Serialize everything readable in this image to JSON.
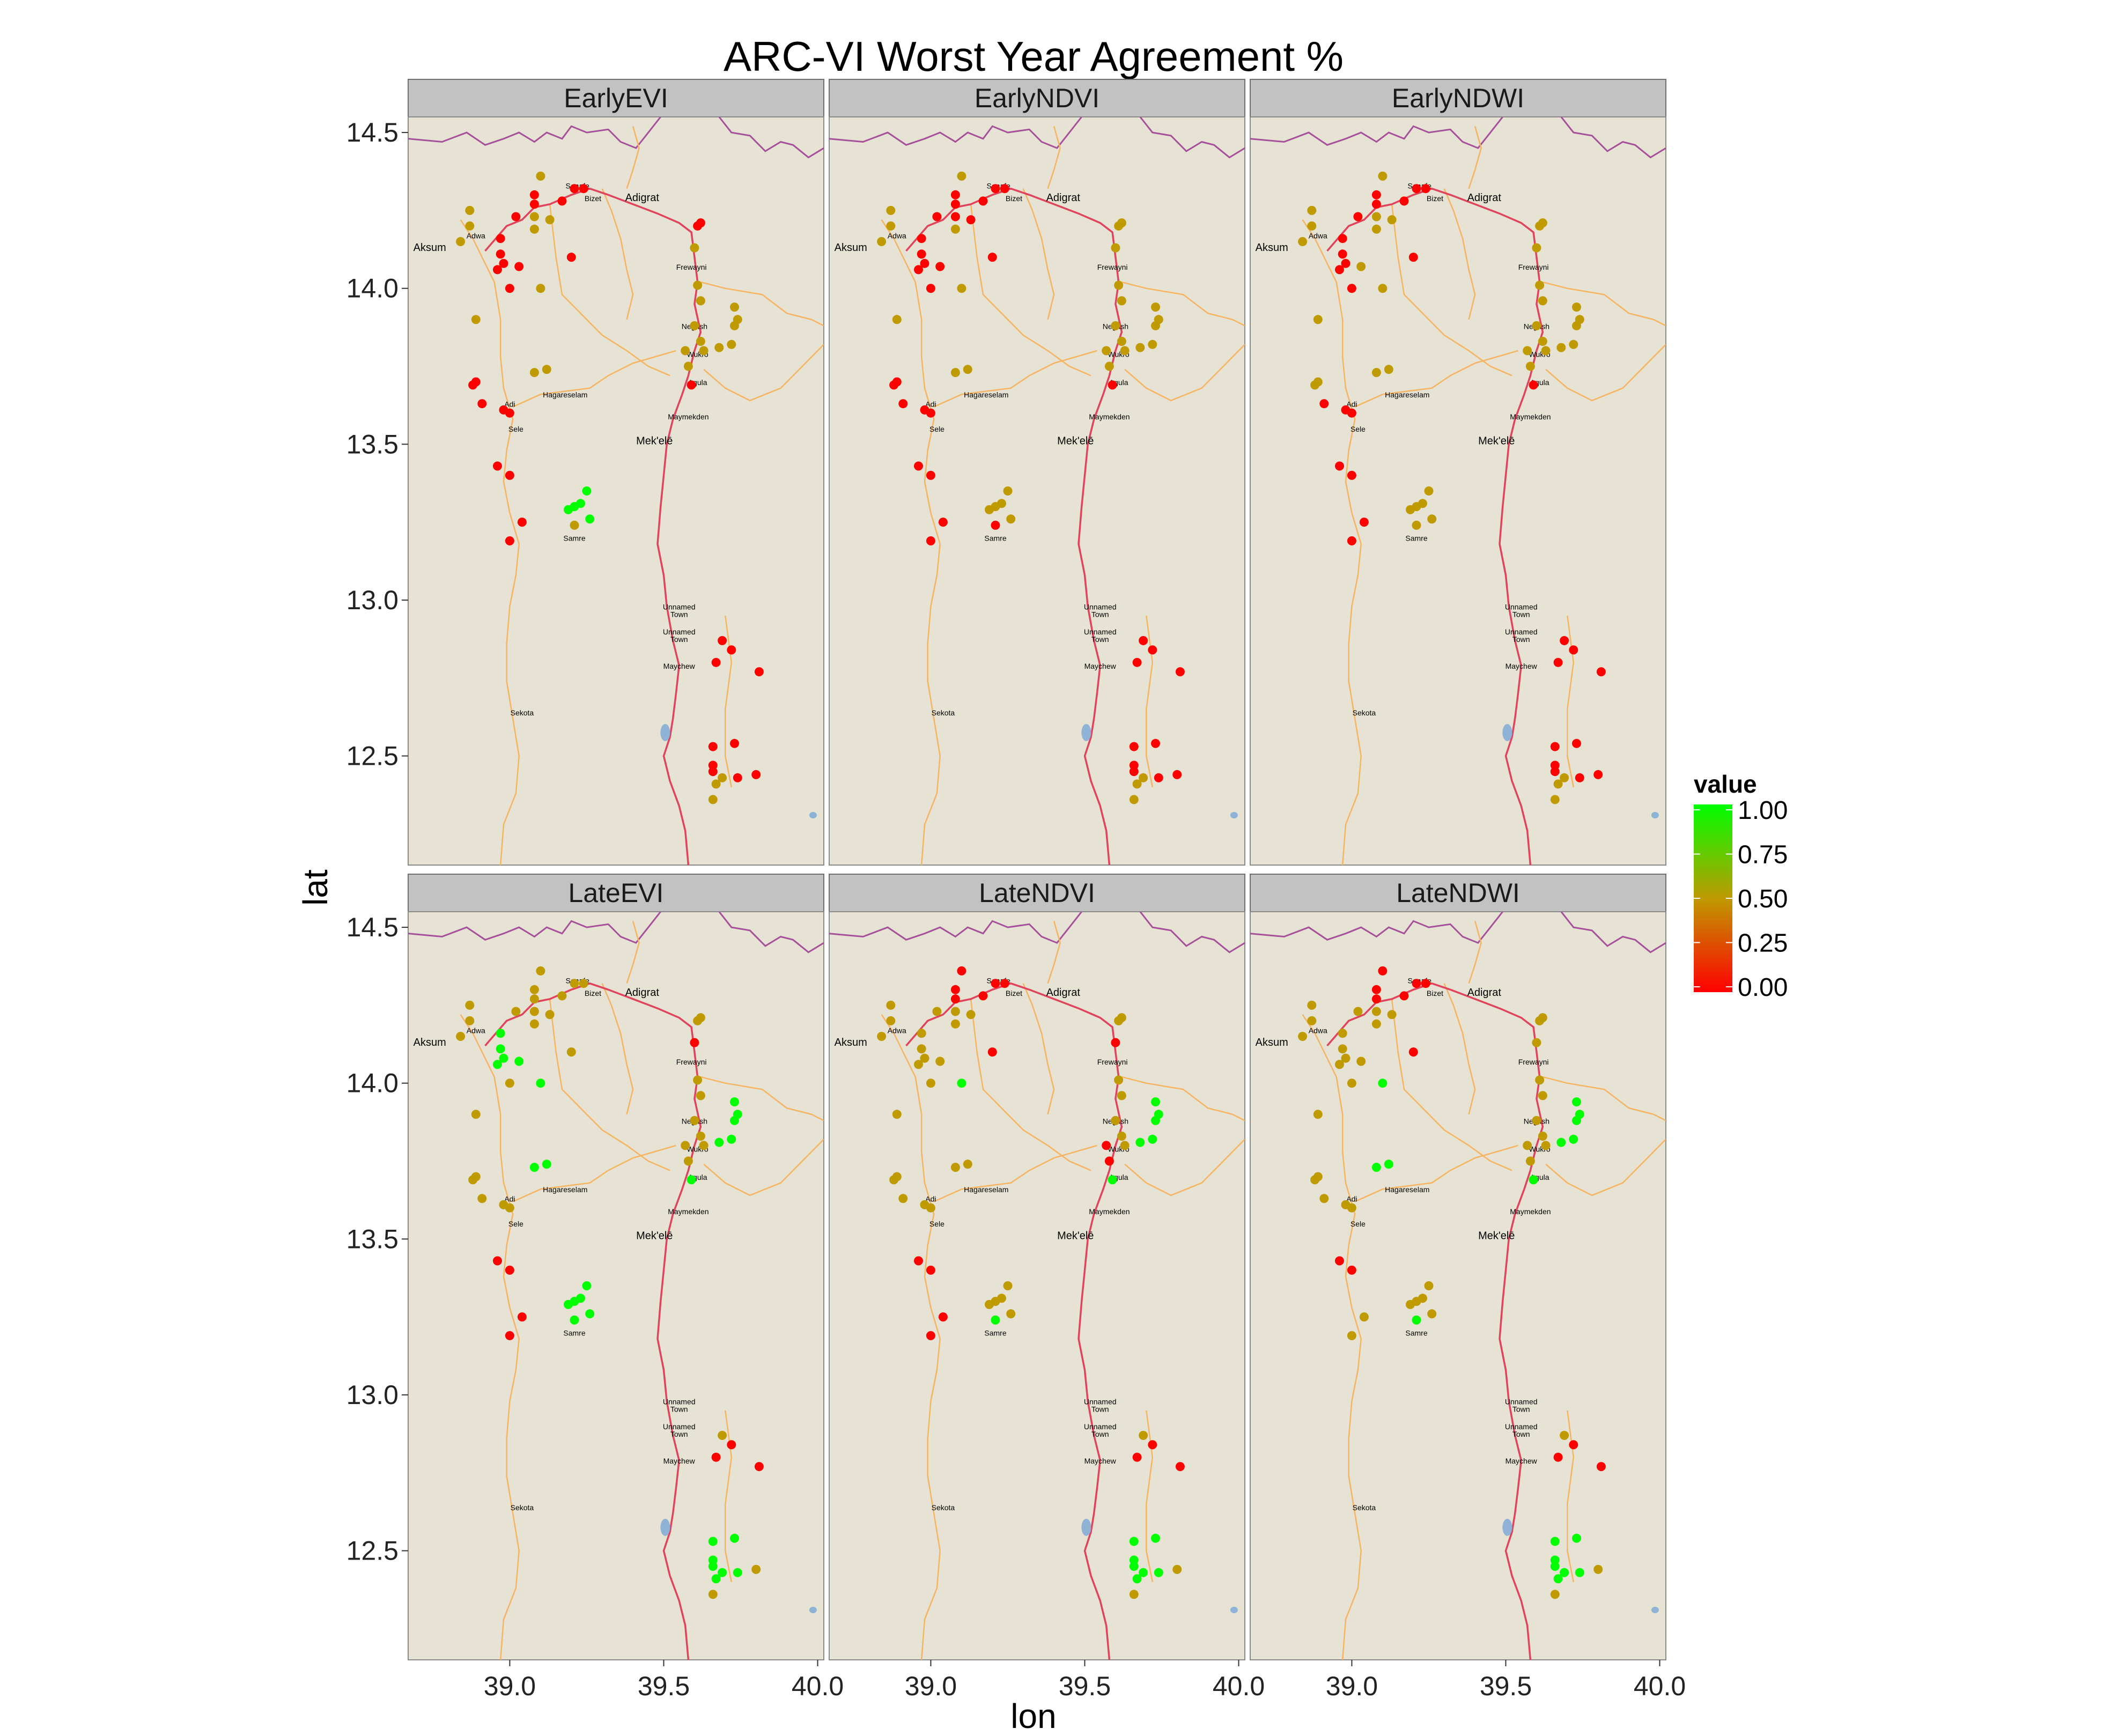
{
  "title": "ARC-VI Worst Year Agreement %",
  "colors": {
    "panel_bg": "#e6e2d4",
    "strip_bg": "#c2c2c2",
    "border_line": "#a64f9a",
    "road_line": "#f6b360",
    "main_road": "#e0435b",
    "water": "#8fb3d6",
    "low": "#ff0000",
    "mid": "#bf9a00",
    "high": "#00ff00"
  },
  "chart_data": {
    "type": "scatter",
    "title": "ARC-VI Worst Year Agreement %",
    "xlabel": "lon",
    "ylabel": "lat",
    "xlim": [
      38.67,
      40.02
    ],
    "ylim": [
      12.15,
      14.55
    ],
    "xticks": [
      "39.0",
      "39.5",
      "40.0"
    ],
    "xtick_values": [
      39.0,
      39.5,
      40.0
    ],
    "yticks": [
      "12.5",
      "13.0",
      "13.5",
      "14.0",
      "14.5"
    ],
    "ytick_values": [
      12.5,
      13.0,
      13.5,
      14.0,
      14.5
    ],
    "legend": {
      "title": "value",
      "position": "right",
      "labels": [
        "1.00",
        "0.75",
        "0.50",
        "0.25",
        "0.00"
      ],
      "values": [
        1.0,
        0.75,
        0.5,
        0.25,
        0.0
      ]
    },
    "towns": [
      {
        "name": "Aksum",
        "lon": 38.74,
        "lat": 14.12
      },
      {
        "name": "Adwa",
        "lon": 38.89,
        "lat": 14.16
      },
      {
        "name": "Senafe",
        "lon": 39.22,
        "lat": 14.32
      },
      {
        "name": "Bizet",
        "lon": 39.27,
        "lat": 14.28
      },
      {
        "name": "Adigrat",
        "lon": 39.43,
        "lat": 14.28
      },
      {
        "name": "Frewayni",
        "lon": 39.59,
        "lat": 14.06
      },
      {
        "name": "Negash",
        "lon": 39.6,
        "lat": 13.87
      },
      {
        "name": "Wukro",
        "lon": 39.61,
        "lat": 13.78
      },
      {
        "name": "Agula",
        "lon": 39.61,
        "lat": 13.69
      },
      {
        "name": "Adi",
        "lon": 39.0,
        "lat": 13.62
      },
      {
        "name": "Hagareselam",
        "lon": 39.18,
        "lat": 13.65
      },
      {
        "name": "Maymekden",
        "lon": 39.58,
        "lat": 13.58
      },
      {
        "name": "Sele",
        "lon": 39.02,
        "lat": 13.54
      },
      {
        "name": "Mek'elē",
        "lon": 39.47,
        "lat": 13.5
      },
      {
        "name": "Samre",
        "lon": 39.21,
        "lat": 13.19
      },
      {
        "name": "Unnamed\nTown",
        "lon": 39.55,
        "lat": 12.97
      },
      {
        "name": "Unnamed\nTown",
        "lon": 39.55,
        "lat": 12.89
      },
      {
        "name": "Maychew",
        "lon": 39.55,
        "lat": 12.78
      },
      {
        "name": "Sekota",
        "lon": 39.04,
        "lat": 12.63
      }
    ],
    "sites": [
      {
        "lon": 38.87,
        "lat": 14.25
      },
      {
        "lon": 38.87,
        "lat": 14.2
      },
      {
        "lon": 38.84,
        "lat": 14.15
      },
      {
        "lon": 38.97,
        "lat": 14.16
      },
      {
        "lon": 38.97,
        "lat": 14.11
      },
      {
        "lon": 38.98,
        "lat": 14.08
      },
      {
        "lon": 38.96,
        "lat": 14.06
      },
      {
        "lon": 39.0,
        "lat": 14.0
      },
      {
        "lon": 39.03,
        "lat": 14.07
      },
      {
        "lon": 39.1,
        "lat": 14.0
      },
      {
        "lon": 39.08,
        "lat": 14.3
      },
      {
        "lon": 39.1,
        "lat": 14.36
      },
      {
        "lon": 39.08,
        "lat": 14.27
      },
      {
        "lon": 39.13,
        "lat": 14.22
      },
      {
        "lon": 39.08,
        "lat": 14.19
      },
      {
        "lon": 39.08,
        "lat": 14.23
      },
      {
        "lon": 39.02,
        "lat": 14.23
      },
      {
        "lon": 39.17,
        "lat": 14.28
      },
      {
        "lon": 39.21,
        "lat": 14.32
      },
      {
        "lon": 39.24,
        "lat": 14.32
      },
      {
        "lon": 39.2,
        "lat": 14.1
      },
      {
        "lon": 38.89,
        "lat": 13.9
      },
      {
        "lon": 38.88,
        "lat": 13.69
      },
      {
        "lon": 38.89,
        "lat": 13.7
      },
      {
        "lon": 38.91,
        "lat": 13.63
      },
      {
        "lon": 39.0,
        "lat": 13.6
      },
      {
        "lon": 38.98,
        "lat": 13.61
      },
      {
        "lon": 39.08,
        "lat": 13.73
      },
      {
        "lon": 39.12,
        "lat": 13.74
      },
      {
        "lon": 38.96,
        "lat": 13.43
      },
      {
        "lon": 39.0,
        "lat": 13.4
      },
      {
        "lon": 39.04,
        "lat": 13.25
      },
      {
        "lon": 39.0,
        "lat": 13.19
      },
      {
        "lon": 39.19,
        "lat": 13.29
      },
      {
        "lon": 39.21,
        "lat": 13.3
      },
      {
        "lon": 39.23,
        "lat": 13.31
      },
      {
        "lon": 39.25,
        "lat": 13.35
      },
      {
        "lon": 39.26,
        "lat": 13.26
      },
      {
        "lon": 39.21,
        "lat": 13.24
      },
      {
        "lon": 39.61,
        "lat": 14.2
      },
      {
        "lon": 39.62,
        "lat": 14.21
      },
      {
        "lon": 39.6,
        "lat": 14.13
      },
      {
        "lon": 39.61,
        "lat": 14.01
      },
      {
        "lon": 39.62,
        "lat": 13.96
      },
      {
        "lon": 39.6,
        "lat": 13.88
      },
      {
        "lon": 39.62,
        "lat": 13.83
      },
      {
        "lon": 39.63,
        "lat": 13.8
      },
      {
        "lon": 39.57,
        "lat": 13.8
      },
      {
        "lon": 39.58,
        "lat": 13.75
      },
      {
        "lon": 39.59,
        "lat": 13.69
      },
      {
        "lon": 39.68,
        "lat": 13.81
      },
      {
        "lon": 39.72,
        "lat": 13.82
      },
      {
        "lon": 39.73,
        "lat": 13.88
      },
      {
        "lon": 39.74,
        "lat": 13.9
      },
      {
        "lon": 39.73,
        "lat": 13.94
      },
      {
        "lon": 39.69,
        "lat": 12.87
      },
      {
        "lon": 39.72,
        "lat": 12.84
      },
      {
        "lon": 39.67,
        "lat": 12.8
      },
      {
        "lon": 39.81,
        "lat": 12.77
      },
      {
        "lon": 39.66,
        "lat": 12.53
      },
      {
        "lon": 39.73,
        "lat": 12.54
      },
      {
        "lon": 39.66,
        "lat": 12.47
      },
      {
        "lon": 39.66,
        "lat": 12.45
      },
      {
        "lon": 39.67,
        "lat": 12.41
      },
      {
        "lon": 39.69,
        "lat": 12.43
      },
      {
        "lon": 39.74,
        "lat": 12.43
      },
      {
        "lon": 39.8,
        "lat": 12.44
      },
      {
        "lon": 39.66,
        "lat": 12.36
      }
    ],
    "facets": [
      {
        "name": "EarlyEVI",
        "values": [
          0.5,
          0.5,
          0.5,
          0,
          0,
          0,
          0,
          0,
          0,
          0.5,
          0,
          0.5,
          0,
          0.5,
          0.5,
          0.5,
          0,
          0,
          0,
          0,
          0,
          0.5,
          0,
          0,
          0,
          0,
          0,
          0.5,
          0.5,
          0,
          0,
          0,
          0,
          1,
          1,
          1,
          1,
          1,
          0.5,
          0,
          0,
          0.5,
          0.5,
          0.5,
          0.5,
          0.5,
          0.5,
          0.5,
          0.5,
          0,
          0.5,
          0.5,
          0.5,
          0.5,
          0.5,
          0,
          0,
          0,
          0,
          0,
          0,
          0,
          0,
          0.5,
          0.5,
          0,
          0,
          0.5
        ]
      },
      {
        "name": "EarlyNDVI",
        "values": [
          0.5,
          0.5,
          0.5,
          0,
          0,
          0,
          0,
          0,
          0,
          0.5,
          0,
          0.5,
          0,
          0,
          0.5,
          0,
          0,
          0,
          0,
          0,
          0,
          0.5,
          0,
          0,
          0,
          0,
          0,
          0.5,
          0.5,
          0,
          0,
          0,
          0,
          0.5,
          0.5,
          0.5,
          0.5,
          0.5,
          0,
          0.5,
          0.5,
          0.5,
          0.5,
          0.5,
          0.5,
          0.5,
          0.5,
          0.5,
          0.5,
          0,
          0.5,
          0.5,
          0.5,
          0.5,
          0.5,
          0,
          0,
          0,
          0,
          0,
          0,
          0,
          0,
          0.5,
          0.5,
          0,
          0,
          0.5
        ]
      },
      {
        "name": "EarlyNDWI",
        "values": [
          0.5,
          0.5,
          0.5,
          0,
          0,
          0,
          0,
          0,
          0.5,
          0.5,
          0,
          0.5,
          0,
          0.5,
          0.5,
          0.5,
          0,
          0,
          0,
          0,
          0,
          0.5,
          0.5,
          0.5,
          0,
          0,
          0,
          0.5,
          0.5,
          0,
          0,
          0,
          0,
          0.5,
          0.5,
          0.5,
          0.5,
          0.5,
          0.5,
          0.5,
          0.5,
          0.5,
          0.5,
          0.5,
          0.5,
          0.5,
          0.5,
          0.5,
          0.5,
          0,
          0.5,
          0.5,
          0.5,
          0.5,
          0.5,
          0,
          0,
          0,
          0,
          0,
          0,
          0,
          0,
          0.5,
          0.5,
          0,
          0,
          0.5
        ]
      },
      {
        "name": "LateEVI",
        "values": [
          0.5,
          0.5,
          0.5,
          1,
          1,
          1,
          1,
          0.5,
          1,
          1,
          0.5,
          0.5,
          0.5,
          0.5,
          0.5,
          0.5,
          0.5,
          0.5,
          0.5,
          0.5,
          0.5,
          0.5,
          0.5,
          0.5,
          0.5,
          0.5,
          0.5,
          1,
          1,
          0,
          0,
          0,
          0,
          1,
          1,
          1,
          1,
          1,
          1,
          0.5,
          0.5,
          0,
          0.5,
          0.5,
          0.5,
          0.5,
          0.5,
          0.5,
          0.5,
          1,
          1,
          1,
          1,
          1,
          1,
          0.5,
          0,
          0,
          0,
          1,
          1,
          1,
          1,
          1,
          1,
          1,
          0.5,
          0.5
        ]
      },
      {
        "name": "LateNDVI",
        "values": [
          0.5,
          0.5,
          0.5,
          0.5,
          0.5,
          0.5,
          0.5,
          0.5,
          0.5,
          1,
          0,
          0,
          0,
          0.5,
          0.5,
          0.5,
          0.5,
          0,
          0,
          0,
          0,
          0.5,
          0.5,
          0.5,
          0.5,
          0.5,
          0.5,
          0.5,
          0.5,
          0,
          0,
          0,
          0,
          0.5,
          0.5,
          0.5,
          0.5,
          0.5,
          1,
          0.5,
          0.5,
          0,
          0.5,
          0.5,
          0.5,
          0.5,
          0.5,
          0,
          0,
          1,
          1,
          1,
          1,
          1,
          1,
          0.5,
          0,
          0,
          0,
          1,
          1,
          1,
          1,
          1,
          1,
          1,
          0.5,
          0.5
        ]
      },
      {
        "name": "LateNDWI",
        "values": [
          0.5,
          0.5,
          0.5,
          0.5,
          0.5,
          0.5,
          0.5,
          0.5,
          0.5,
          1,
          0,
          0,
          0,
          0.5,
          0.5,
          0.5,
          0.5,
          0,
          0,
          0,
          0,
          0.5,
          0.5,
          0.5,
          0.5,
          0.5,
          0.5,
          1,
          1,
          0,
          0,
          0.5,
          0.5,
          0.5,
          0.5,
          0.5,
          0.5,
          0.5,
          1,
          0.5,
          0.5,
          0.5,
          0.5,
          0.5,
          0.5,
          0.5,
          0.5,
          0.5,
          0.5,
          1,
          1,
          1,
          1,
          1,
          1,
          0.5,
          0,
          0,
          0,
          1,
          1,
          1,
          1,
          1,
          1,
          1,
          0.5,
          0.5
        ]
      }
    ]
  }
}
